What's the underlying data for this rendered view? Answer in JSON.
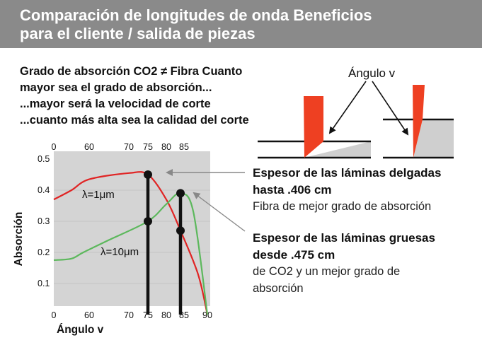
{
  "header": {
    "title_line1": "Comparación de longitudes de onda Beneficios",
    "title_line2": "para el cliente / salida de piezas"
  },
  "intro": {
    "line1": "Grado de absorción CO2 ≠ Fibra Cuanto",
    "line2": "mayor sea el grado de absorción...",
    "line3": "...mayor será la velocidad de corte",
    "line4": "...cuanto más alta sea la calidad del corte"
  },
  "diagram": {
    "angle_label": "Ángulo v"
  },
  "thin": {
    "title_line1": "Espesor de las láminas delgadas",
    "title_line2": "hasta .406 cm",
    "desc": "Fibra de mejor grado de absorción"
  },
  "thick": {
    "title_line1": "Espesor de las láminas gruesas",
    "title_line2": "desde .475 cm",
    "desc_line1": "de CO2 y un mejor grado de",
    "desc_line2": "absorción"
  },
  "chart_data": {
    "type": "line",
    "xlabel": "Ángulo v",
    "ylabel": "Absorción",
    "xlim": [
      0,
      90
    ],
    "ylim": [
      0,
      0.5
    ],
    "x_ticks": [
      "0",
      "60",
      "70",
      "75",
      "80",
      "85",
      "90"
    ],
    "top_x_ticks": [
      "0",
      "60",
      "70",
      "75",
      "80",
      "85"
    ],
    "y_ticks": [
      "0.5",
      "0.4",
      "0.3",
      "0.2",
      "0.1"
    ],
    "series": [
      {
        "name": "λ=1μm",
        "color": "#e02424",
        "points": [
          [
            0,
            0.37
          ],
          [
            30,
            0.4
          ],
          [
            60,
            0.435
          ],
          [
            70,
            0.455
          ],
          [
            75,
            0.45
          ],
          [
            80,
            0.37
          ],
          [
            84,
            0.27
          ],
          [
            88,
            0.13
          ],
          [
            90,
            0.0
          ]
        ]
      },
      {
        "name": "λ=10μm",
        "color": "#5cb85c",
        "points": [
          [
            0,
            0.175
          ],
          [
            30,
            0.18
          ],
          [
            50,
            0.2
          ],
          [
            65,
            0.24
          ],
          [
            75,
            0.3
          ],
          [
            80,
            0.355
          ],
          [
            84,
            0.39
          ],
          [
            87,
            0.33
          ],
          [
            90,
            0.0
          ]
        ]
      }
    ],
    "markers": [
      {
        "x": 75,
        "values": [
          0.45,
          0.3
        ]
      },
      {
        "x": 84,
        "values": [
          0.39,
          0.27
        ]
      }
    ]
  }
}
